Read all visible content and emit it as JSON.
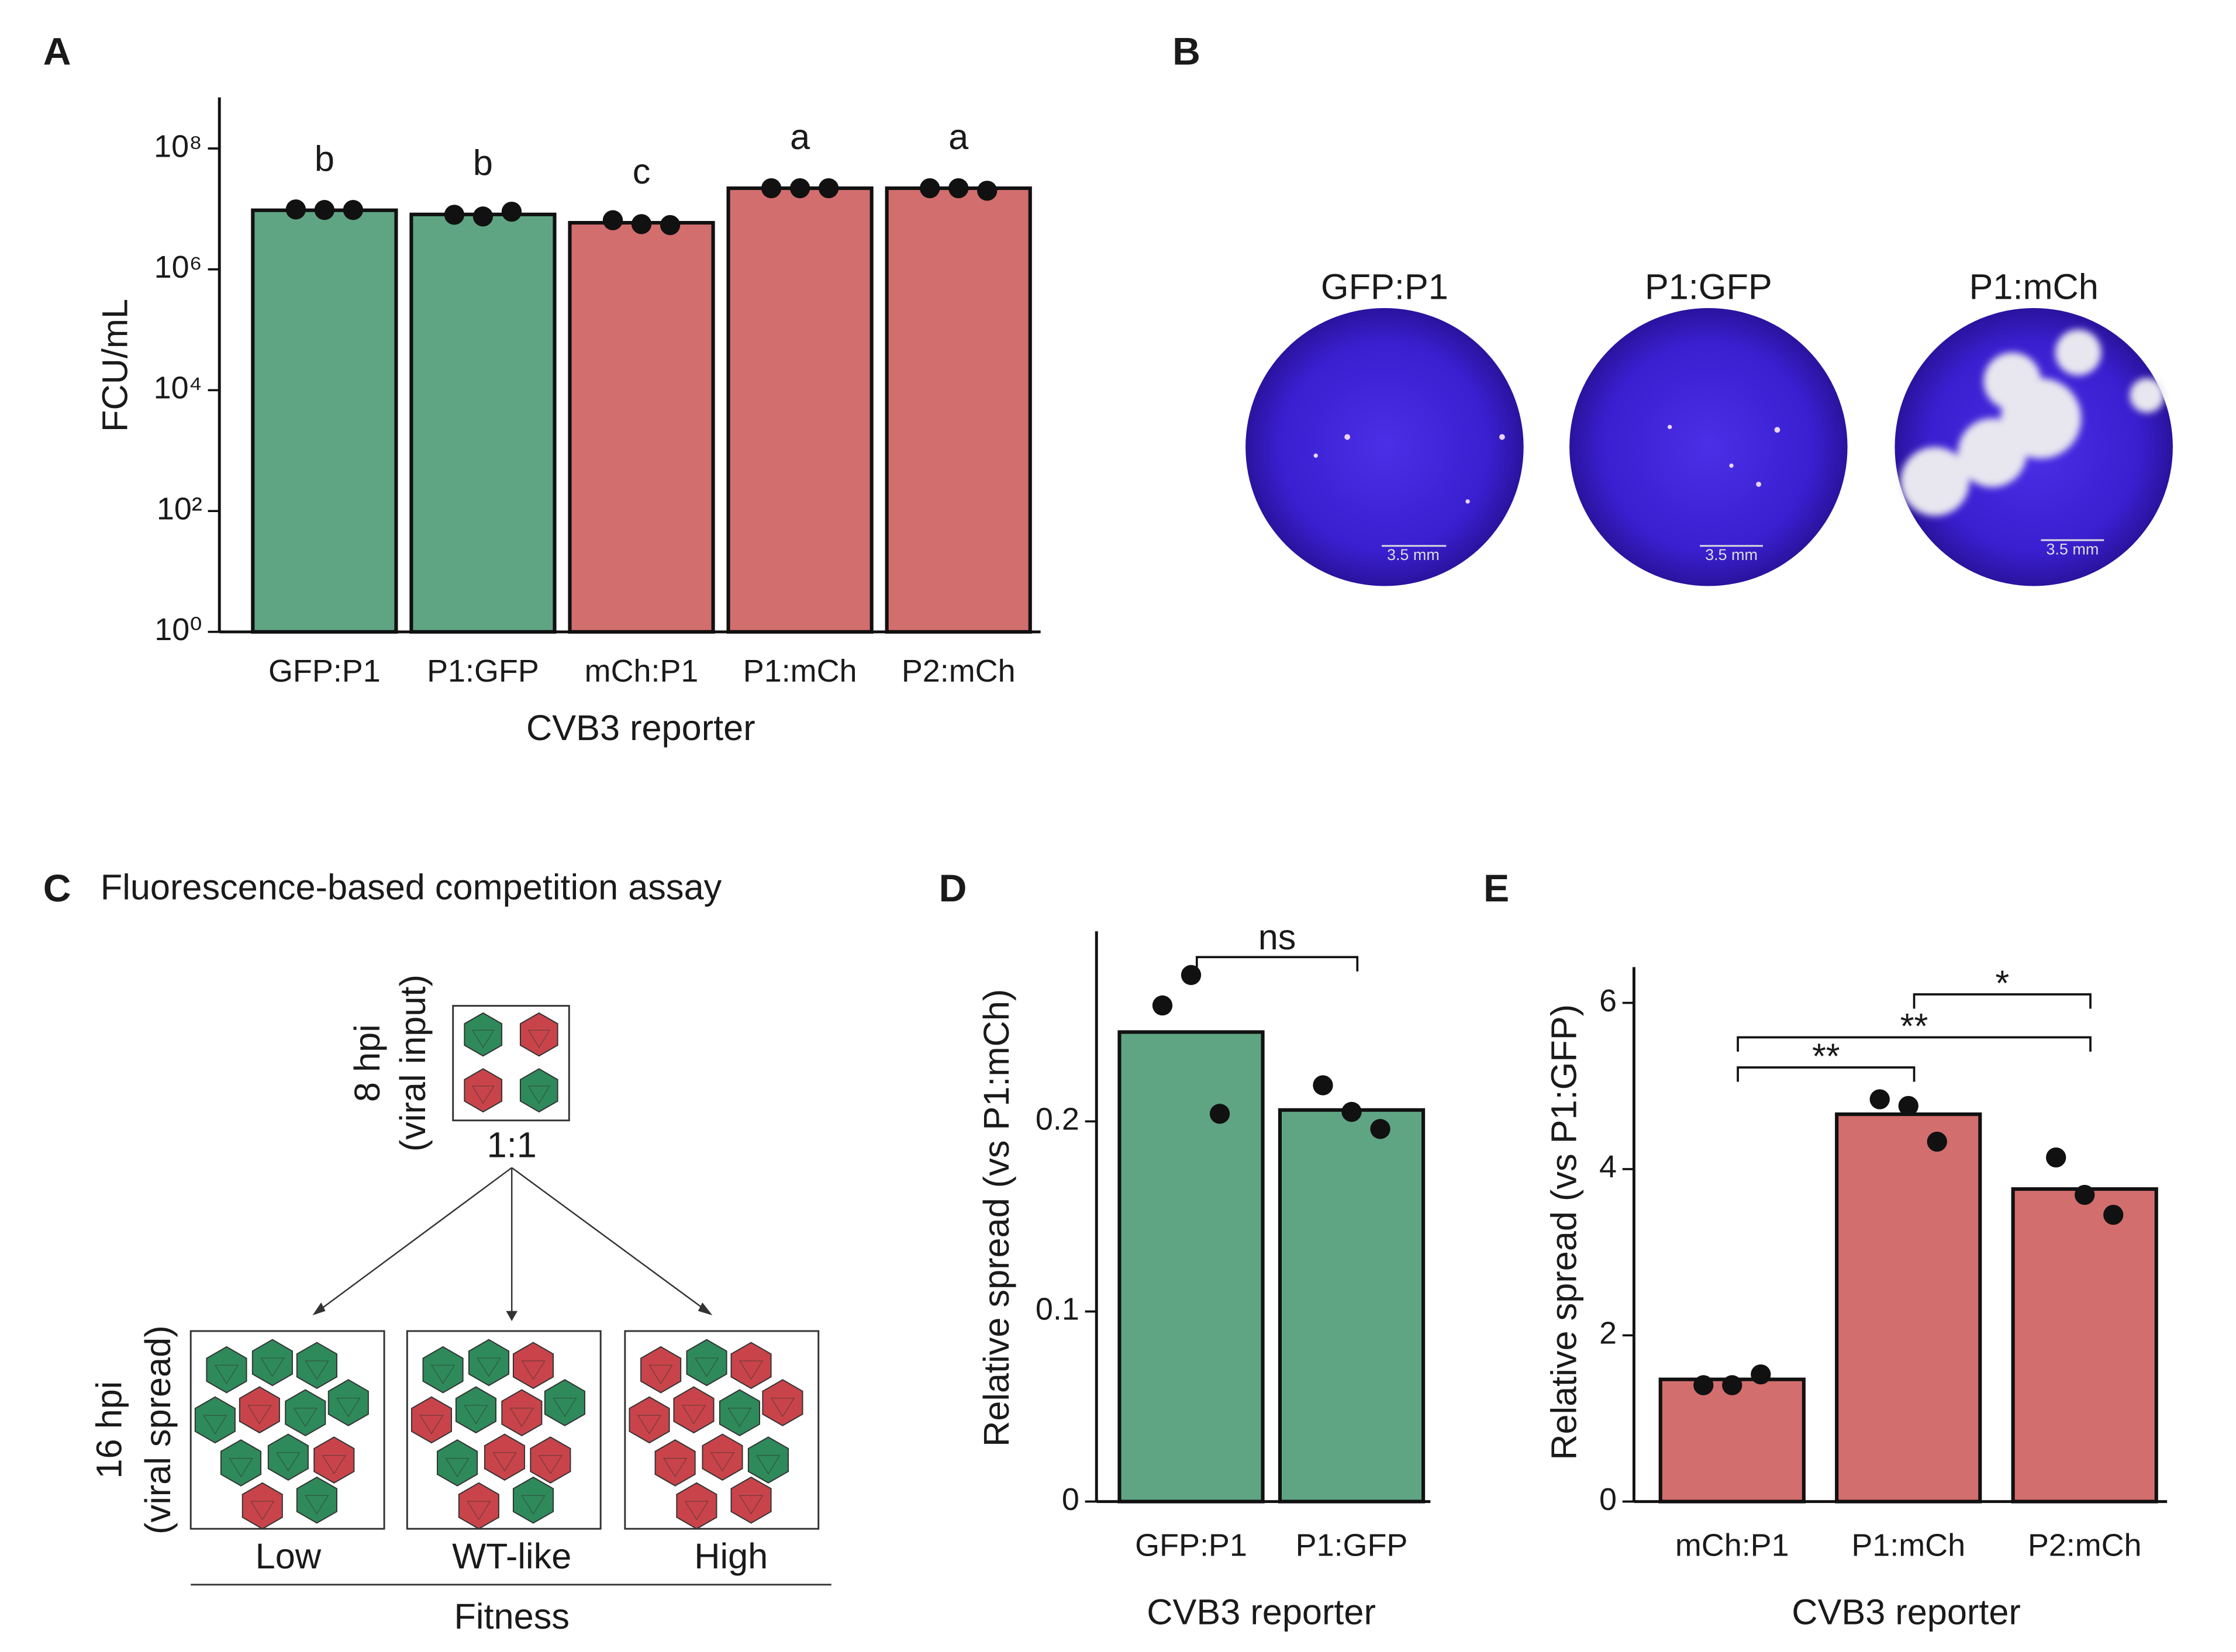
{
  "chart_data": [
    {
      "type": "bar",
      "panel": "A",
      "y_label": "FCU/mL",
      "x_label": "CVB3 reporter",
      "categories": [
        "GFP:P1",
        "P1:GFP",
        "mCh:P1",
        "P1:mCh",
        "P2:mCh"
      ],
      "values": [
        9500000,
        8100000,
        5900000,
        22000000,
        22000000
      ],
      "colors": [
        "#5fa584",
        "#5fa584",
        "#d36e6e",
        "#d36e6e",
        "#d36e6e"
      ],
      "points": [
        [
          9800000,
          9600000,
          9600000
        ],
        [
          8000000,
          7500000,
          9000000
        ],
        [
          6500000,
          5600000,
          5400000
        ],
        [
          22000000,
          22000000,
          22000000
        ],
        [
          22000000,
          22000000,
          20000000
        ]
      ],
      "annotations": [
        "b",
        "b",
        "c",
        "a",
        "a"
      ],
      "log_scale": true,
      "ylim": [
        1,
        700000000
      ],
      "yticks": [
        {
          "value": 1,
          "label": "10⁰"
        },
        {
          "value": 100,
          "label": "10²"
        },
        {
          "value": 10000,
          "label": "10⁴"
        },
        {
          "value": 1000000,
          "label": "10⁶"
        },
        {
          "value": 100000000,
          "label": "10⁸"
        }
      ]
    },
    {
      "type": "bar",
      "panel": "D",
      "y_label": "Relative spread (vs P1:mCh)",
      "x_label": "CVB3 reporter",
      "categories": [
        "GFP:P1",
        "P1:GFP"
      ],
      "values": [
        0.247,
        0.206
      ],
      "colors": [
        "#5fa584",
        "#5fa584"
      ],
      "points": [
        [
          0.261,
          0.277,
          0.204
        ],
        [
          0.219,
          0.205,
          0.196
        ]
      ],
      "comparisons": [
        {
          "from": 0,
          "to": 1,
          "label": "ns"
        }
      ],
      "log_scale": false,
      "ylim": [
        0,
        0.3
      ],
      "yticks": [
        0,
        0.1,
        0.2
      ]
    },
    {
      "type": "bar",
      "panel": "E",
      "y_label": "Relative spread (vs P1:GFP)",
      "x_label": "CVB3 reporter",
      "categories": [
        "mCh:P1",
        "P1:mCh",
        "P2:mCh"
      ],
      "values": [
        1.47,
        4.66,
        3.76
      ],
      "colors": [
        "#d36e6e",
        "#d36e6e",
        "#d36e6e"
      ],
      "points": [
        [
          1.4,
          1.4,
          1.53
        ],
        [
          4.84,
          4.76,
          4.33
        ],
        [
          4.14,
          3.69,
          3.45
        ]
      ],
      "comparisons": [
        {
          "from": 0,
          "to": 1,
          "label": "**"
        },
        {
          "from": 0,
          "to": 2,
          "label": "**"
        },
        {
          "from": 1,
          "to": 2,
          "label": "*"
        }
      ],
      "log_scale": false,
      "ylim": [
        0,
        6.43
      ],
      "yticks": [
        0,
        2,
        4,
        6
      ]
    }
  ],
  "panel_b": {
    "panel": "B",
    "images": [
      {
        "title": "GFP:P1",
        "scale_bar": "3.5 mm"
      },
      {
        "title": "P1:GFP",
        "scale_bar": "3.5 mm"
      },
      {
        "title": "P1:mCh",
        "scale_bar": "3.5 mm"
      }
    ]
  },
  "panel_c": {
    "panel": "C",
    "title": "Fluorescence-based competition assay",
    "input_time": "8 hpi",
    "input_note": "(viral input)",
    "ratio": "1:1",
    "spread_time": "16 hpi",
    "spread_note": "(viral spread)",
    "outcomes": [
      "Low",
      "WT-like",
      "High"
    ],
    "axis_label": "Fitness"
  }
}
